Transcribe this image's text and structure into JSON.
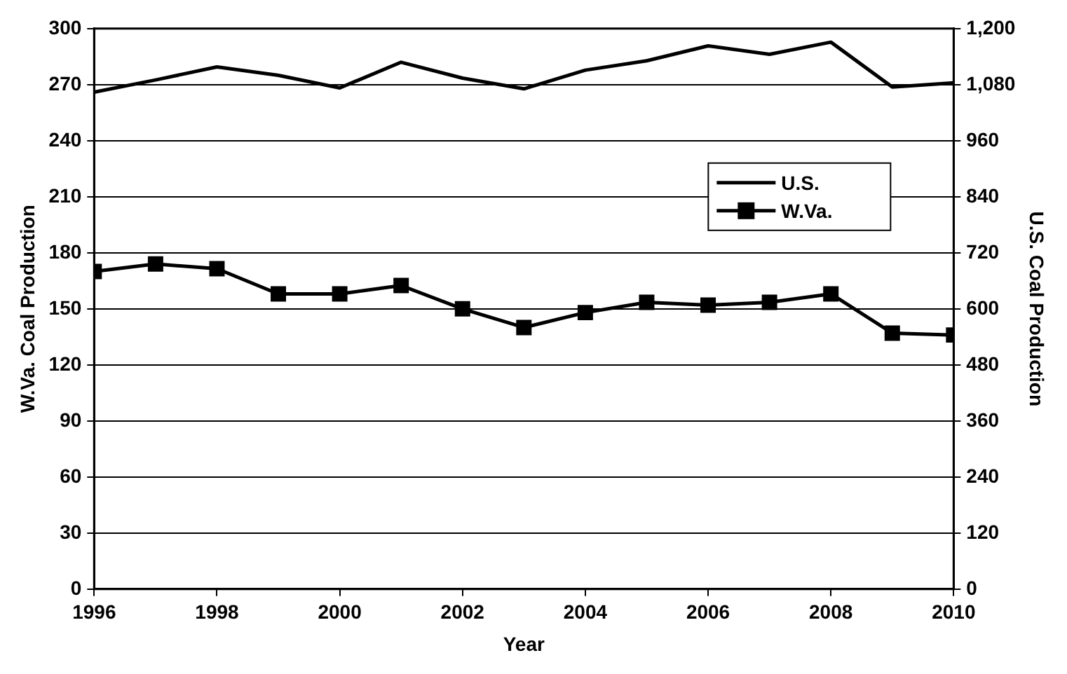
{
  "chart_data": {
    "type": "line",
    "xlabel": "Year",
    "ylabel": "W.Va. Coal Production",
    "y2label": "U.S. Coal Production",
    "x": [
      1996,
      1997,
      1998,
      1999,
      2000,
      2001,
      2002,
      2003,
      2004,
      2005,
      2006,
      2007,
      2008,
      2009,
      2010
    ],
    "series": [
      {
        "name": "U.S.",
        "color": "#000000",
        "axis": "y2",
        "marker": "none",
        "values": [
          1064,
          1090,
          1118,
          1100,
          1073,
          1128,
          1094,
          1071,
          1111,
          1131,
          1163,
          1145,
          1171,
          1075,
          1084
        ]
      },
      {
        "name": "W.Va.",
        "color": "#000000",
        "axis": "y",
        "marker": "square",
        "values": [
          170,
          174,
          171.5,
          158,
          158,
          162.5,
          150,
          140,
          148,
          153.5,
          152,
          153.5,
          158,
          137,
          136
        ]
      }
    ],
    "xlim": [
      1996,
      2010
    ],
    "xticks": [
      1996,
      1998,
      2000,
      2002,
      2004,
      2006,
      2008,
      2010
    ],
    "ylim": [
      0,
      300
    ],
    "yticks": [
      0,
      30,
      60,
      90,
      120,
      150,
      180,
      210,
      240,
      270,
      300
    ],
    "y2lim": [
      0,
      1200
    ],
    "y2ticks": [
      0,
      120,
      240,
      360,
      480,
      600,
      720,
      840,
      960,
      {
        "value": 1080,
        "label": "1,080"
      },
      {
        "value": 1200,
        "label": "1,200"
      }
    ],
    "grid": "y",
    "legend": "right"
  }
}
